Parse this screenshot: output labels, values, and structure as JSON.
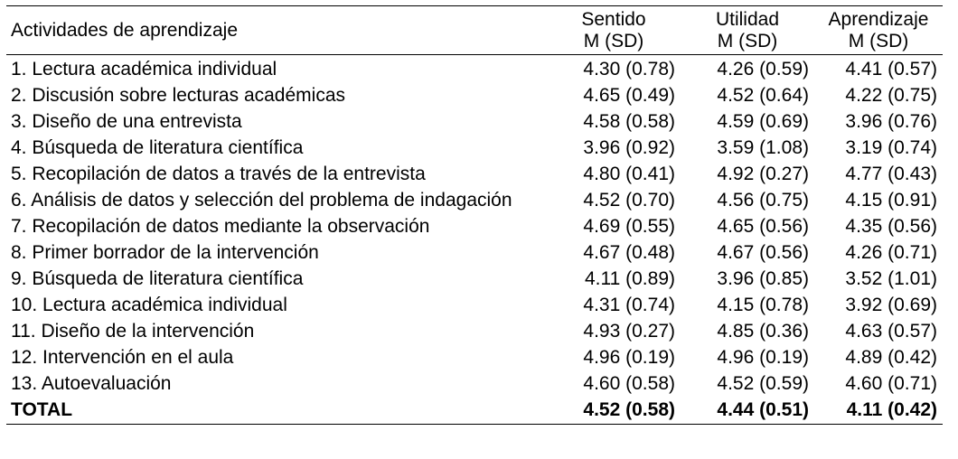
{
  "table": {
    "headers": {
      "activity": "Actividades de aprendizaje",
      "col1_line1": "Sentido",
      "col1_line2": "M (SD)",
      "col2_line1": "Utilidad",
      "col2_line2": "M (SD)",
      "col3_line1": "Aprendizaje",
      "col3_line2": "M (SD)"
    },
    "rows": [
      {
        "activity": "1. Lectura académica individual",
        "sentido": "4.30 (0.78)",
        "utilidad": "4.26 (0.59)",
        "aprendizaje": "4.41 (0.57)"
      },
      {
        "activity": "2. Discusión sobre lecturas académicas",
        "sentido": "4.65 (0.49)",
        "utilidad": "4.52 (0.64)",
        "aprendizaje": "4.22 (0.75)"
      },
      {
        "activity": "3. Diseño de una entrevista",
        "sentido": "4.58 (0.58)",
        "utilidad": "4.59 (0.69)",
        "aprendizaje": "3.96 (0.76)"
      },
      {
        "activity": "4. Búsqueda de literatura científica",
        "sentido": "3.96 (0.92)",
        "utilidad": "3.59 (1.08)",
        "aprendizaje": "3.19 (0.74)"
      },
      {
        "activity": "5. Recopilación de datos a través de la entrevista",
        "sentido": "4.80 (0.41)",
        "utilidad": "4.92 (0.27)",
        "aprendizaje": "4.77 (0.43)"
      },
      {
        "activity": "6. Análisis de datos y selección del problema de indagación",
        "sentido": "4.52 (0.70)",
        "utilidad": "4.56 (0.75)",
        "aprendizaje": "4.15 (0.91)"
      },
      {
        "activity": "7. Recopilación de datos mediante la observación",
        "sentido": "4.69 (0.55)",
        "utilidad": "4.65 (0.56)",
        "aprendizaje": "4.35 (0.56)"
      },
      {
        "activity": "8. Primer borrador de la intervención",
        "sentido": "4.67 (0.48)",
        "utilidad": "4.67 (0.56)",
        "aprendizaje": "4.26 (0.71)"
      },
      {
        "activity": "9. Búsqueda de literatura científica",
        "sentido": "4.11 (0.89)",
        "utilidad": "3.96 (0.85)",
        "aprendizaje": "3.52 (1.01)"
      },
      {
        "activity": "10. Lectura académica individual",
        "sentido": "4.31 (0.74)",
        "utilidad": "4.15 (0.78)",
        "aprendizaje": "3.92 (0.69)"
      },
      {
        "activity": "11. Diseño de la intervención",
        "sentido": "4.93 (0.27)",
        "utilidad": "4.85 (0.36)",
        "aprendizaje": "4.63 (0.57)"
      },
      {
        "activity": "12. Intervención en el aula",
        "sentido": "4.96 (0.19)",
        "utilidad": "4.96 (0.19)",
        "aprendizaje": "4.89 (0.42)"
      },
      {
        "activity": "13. Autoevaluación",
        "sentido": "4.60 (0.58)",
        "utilidad": "4.52 (0.59)",
        "aprendizaje": "4.60 (0.71)"
      }
    ],
    "total": {
      "label": "TOTAL",
      "sentido": "4.52 (0.58)",
      "utilidad": "4.44 (0.51)",
      "aprendizaje": "4.11 (0.42)"
    }
  }
}
